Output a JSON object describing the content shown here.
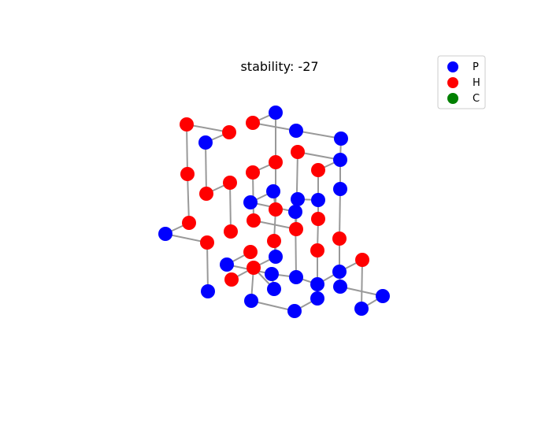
{
  "title": "stability: -27",
  "legend": [
    {
      "label": "P",
      "color": "#0000ff"
    },
    {
      "label": "H",
      "color": "#ff0000"
    },
    {
      "label": "C",
      "color": "#008000"
    }
  ],
  "colors": {
    "P": "#0000ff",
    "H": "#ff0000",
    "C": "#008000",
    "bond": "#999999"
  }
}
